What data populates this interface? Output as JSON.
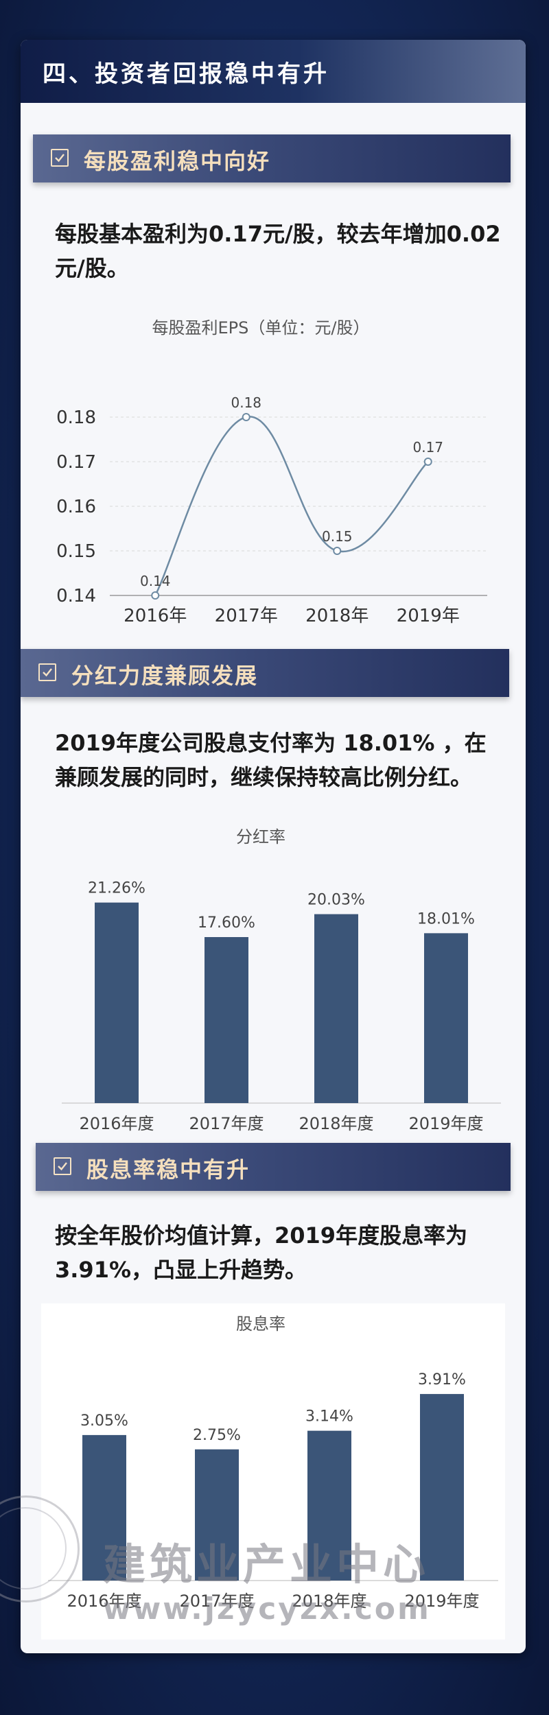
{
  "header": {
    "title": "四、投资者回报稳中有升"
  },
  "sections": [
    {
      "heading": "每股盈利稳中向好",
      "text": "每股基本盈利为0.17元/股，较去年增加0.02元/股。"
    },
    {
      "heading": "分红力度兼顾发展",
      "text": "2019年度公司股息支付率为 18.01% ，在兼顾发展的同时，继续保持较高比例分红。"
    },
    {
      "heading": "股息率稳中有升",
      "text": "按全年股价均值计算，2019年度股息率为3.91%，凸显上升趋势。"
    }
  ],
  "chart_data": [
    {
      "type": "line",
      "title": "每股盈利EPS（单位：元/股）",
      "categories": [
        "2016年",
        "2017年",
        "2018年",
        "2019年"
      ],
      "values": [
        0.14,
        0.18,
        0.15,
        0.17
      ],
      "value_labels": [
        "0.14",
        "0.18",
        "0.15",
        "0.17"
      ],
      "yticks": [
        "0.14",
        "0.15",
        "0.16",
        "0.17",
        "0.18"
      ],
      "ylim": [
        0.14,
        0.18
      ],
      "grid": true,
      "color": "#6e8ba3"
    },
    {
      "type": "bar",
      "title": "分红率",
      "categories": [
        "2016年度",
        "2017年度",
        "2018年度",
        "2019年度"
      ],
      "values": [
        21.26,
        17.6,
        20.03,
        18.01
      ],
      "value_labels": [
        "21.26%",
        "17.60%",
        "20.03%",
        "18.01%"
      ],
      "ylim": [
        0,
        24
      ],
      "color": "#3b5578"
    },
    {
      "type": "bar",
      "title": "股息率",
      "categories": [
        "2016年度",
        "2017年度",
        "2018年度",
        "2019年度"
      ],
      "values": [
        3.05,
        2.75,
        3.14,
        3.91
      ],
      "value_labels": [
        "3.05%",
        "2.75%",
        "3.14%",
        "3.91%"
      ],
      "ylim": [
        0,
        4.4
      ],
      "color": "#3b5578"
    }
  ],
  "watermark": {
    "name": "建筑业产业中心",
    "url": "www.jzycyzx.com"
  }
}
